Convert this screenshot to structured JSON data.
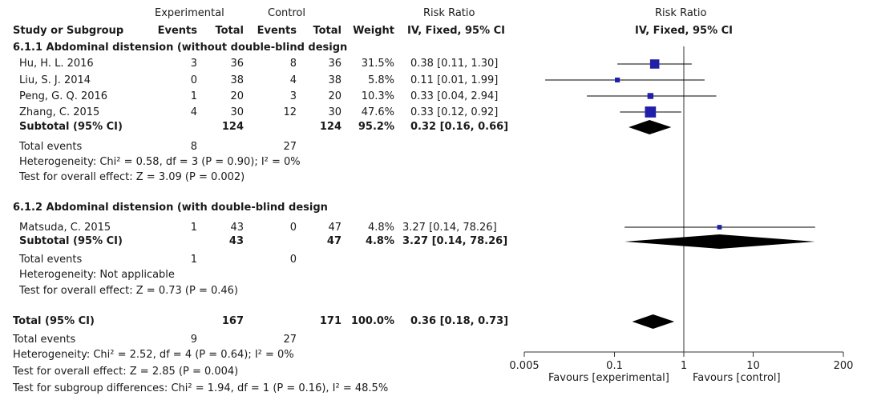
{
  "header": {
    "experimental": "Experimental",
    "control": "Control",
    "risk_ratio_table": "Risk Ratio",
    "risk_ratio_plot": "Risk Ratio",
    "col_study": "Study or Subgroup",
    "col_exp_events": "Events",
    "col_exp_total": "Total",
    "col_ctl_events": "Events",
    "col_ctl_total": "Total",
    "col_weight": "Weight",
    "col_ci_table": "IV, Fixed, 95% CI",
    "col_ci_plot": "IV, Fixed, 95% CI"
  },
  "subgroups": [
    {
      "title": "6.1.1 Abdominal distension (without double-blind design",
      "studies": [
        {
          "name": "Hu, H. L. 2016",
          "exp_events": "3",
          "exp_total": "36",
          "ctl_events": "8",
          "ctl_total": "36",
          "weight": "31.5%",
          "ci_text": "0.38 [0.11, 1.30]"
        },
        {
          "name": "Liu, S. J. 2014",
          "exp_events": "0",
          "exp_total": "38",
          "ctl_events": "4",
          "ctl_total": "38",
          "weight": "5.8%",
          "ci_text": "0.11 [0.01, 1.99]"
        },
        {
          "name": "Peng, G. Q. 2016",
          "exp_events": "1",
          "exp_total": "20",
          "ctl_events": "3",
          "ctl_total": "20",
          "weight": "10.3%",
          "ci_text": "0.33 [0.04, 2.94]"
        },
        {
          "name": "Zhang, C. 2015",
          "exp_events": "4",
          "exp_total": "30",
          "ctl_events": "12",
          "ctl_total": "30",
          "weight": "47.6%",
          "ci_text": "0.33 [0.12, 0.92]"
        }
      ],
      "subtotal": {
        "label": "Subtotal (95% CI)",
        "exp_total": "124",
        "ctl_total": "124",
        "weight": "95.2%",
        "ci_text": "0.32 [0.16, 0.66]"
      },
      "total_events": {
        "label": "Total events",
        "exp": "8",
        "ctl": "27"
      },
      "heterogeneity": "Heterogeneity: Chi² = 0.58, df = 3 (P = 0.90); I² = 0%",
      "overall_effect": "Test for overall effect: Z = 3.09 (P = 0.002)"
    },
    {
      "title": "6.1.2 Abdominal distension (with double-blind design",
      "studies": [
        {
          "name": "Matsuda, C. 2015",
          "exp_events": "1",
          "exp_total": "43",
          "ctl_events": "0",
          "ctl_total": "47",
          "weight": "4.8%",
          "ci_text": "3.27 [0.14, 78.26]"
        }
      ],
      "subtotal": {
        "label": "Subtotal (95% CI)",
        "exp_total": "43",
        "ctl_total": "47",
        "weight": "4.8%",
        "ci_text": "3.27 [0.14, 78.26]"
      },
      "total_events": {
        "label": "Total events",
        "exp": "1",
        "ctl": "0"
      },
      "heterogeneity": "Heterogeneity: Not applicable",
      "overall_effect": "Test for overall effect: Z = 0.73 (P = 0.46)"
    }
  ],
  "total": {
    "label": "Total (95% CI)",
    "exp_total": "167",
    "ctl_total": "171",
    "weight": "100.0%",
    "ci_text": "0.36 [0.18, 0.73]",
    "total_events": {
      "label": "Total events",
      "exp": "9",
      "ctl": "27"
    },
    "heterogeneity": "Heterogeneity: Chi² = 2.52, df = 4 (P = 0.64); I² = 0%",
    "overall_effect": "Test for overall effect: Z = 2.85 (P = 0.004)",
    "subgroup_differences": "Test for subgroup differences: Chi² = 1.94, df = 1 (P = 0.16), I² = 48.5%"
  },
  "axis": {
    "favours_left": "Favours [experimental]",
    "favours_right": "Favours [control]"
  },
  "colors": {
    "marker": "#1f1fa8",
    "diamond": "#000000",
    "text": "#1a1a1a"
  },
  "chart_data": {
    "type": "forest",
    "scale": "log",
    "xlim": [
      0.005,
      200
    ],
    "ticks": [
      0.005,
      0.1,
      1,
      10,
      200
    ],
    "tick_labels": [
      "0.005",
      "0.1",
      "1",
      "10",
      "200"
    ],
    "reference_line": 1,
    "studies": [
      {
        "name": "Hu, H. L. 2016",
        "rr": 0.38,
        "lo": 0.11,
        "hi": 1.3,
        "weight": 31.5
      },
      {
        "name": "Liu, S. J. 2014",
        "rr": 0.11,
        "lo": 0.01,
        "hi": 1.99,
        "weight": 5.8
      },
      {
        "name": "Peng, G. Q. 2016",
        "rr": 0.33,
        "lo": 0.04,
        "hi": 2.94,
        "weight": 10.3
      },
      {
        "name": "Zhang, C. 2015",
        "rr": 0.33,
        "lo": 0.12,
        "hi": 0.92,
        "weight": 47.6
      },
      {
        "name": "Matsuda, C. 2015",
        "rr": 3.27,
        "lo": 0.14,
        "hi": 78.26,
        "weight": 4.8
      }
    ],
    "diamonds": [
      {
        "name": "Subtotal 6.1.1",
        "rr": 0.32,
        "lo": 0.16,
        "hi": 0.66
      },
      {
        "name": "Subtotal 6.1.2",
        "rr": 3.27,
        "lo": 0.14,
        "hi": 78.26
      },
      {
        "name": "Total",
        "rr": 0.36,
        "lo": 0.18,
        "hi": 0.73
      }
    ]
  }
}
